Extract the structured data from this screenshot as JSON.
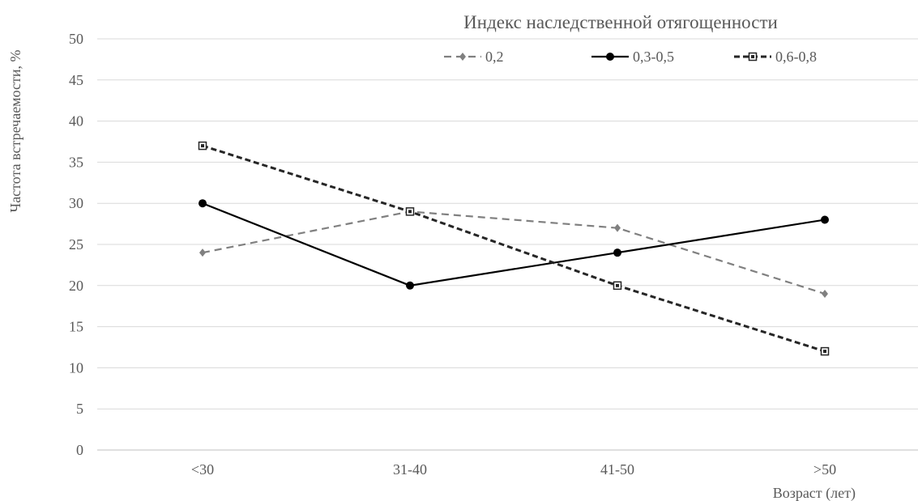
{
  "chart_data": {
    "type": "line",
    "title": "",
    "legend_title": "Индекс наследственной отягощенности",
    "xlabel": "Возраст (лет)",
    "ylabel": "Частота встречаемости, %",
    "categories": [
      "<30",
      "31-40",
      "41-50",
      ">50"
    ],
    "ylim": [
      0,
      50
    ],
    "yticks": [
      0,
      5,
      10,
      15,
      20,
      25,
      30,
      35,
      40,
      45,
      50
    ],
    "grid": true,
    "legend_position": "top",
    "series": [
      {
        "name": "0,2",
        "values": [
          24,
          29,
          27,
          19
        ],
        "color": "#808080",
        "style": "dashed",
        "marker": "diamond"
      },
      {
        "name": "0,3-0,5",
        "values": [
          30,
          20,
          24,
          28
        ],
        "color": "#000000",
        "style": "solid",
        "marker": "circle"
      },
      {
        "name": "0,6-0,8",
        "values": [
          37,
          29,
          20,
          12
        ],
        "color": "#262626",
        "style": "dashed-bold",
        "marker": "square"
      }
    ]
  }
}
